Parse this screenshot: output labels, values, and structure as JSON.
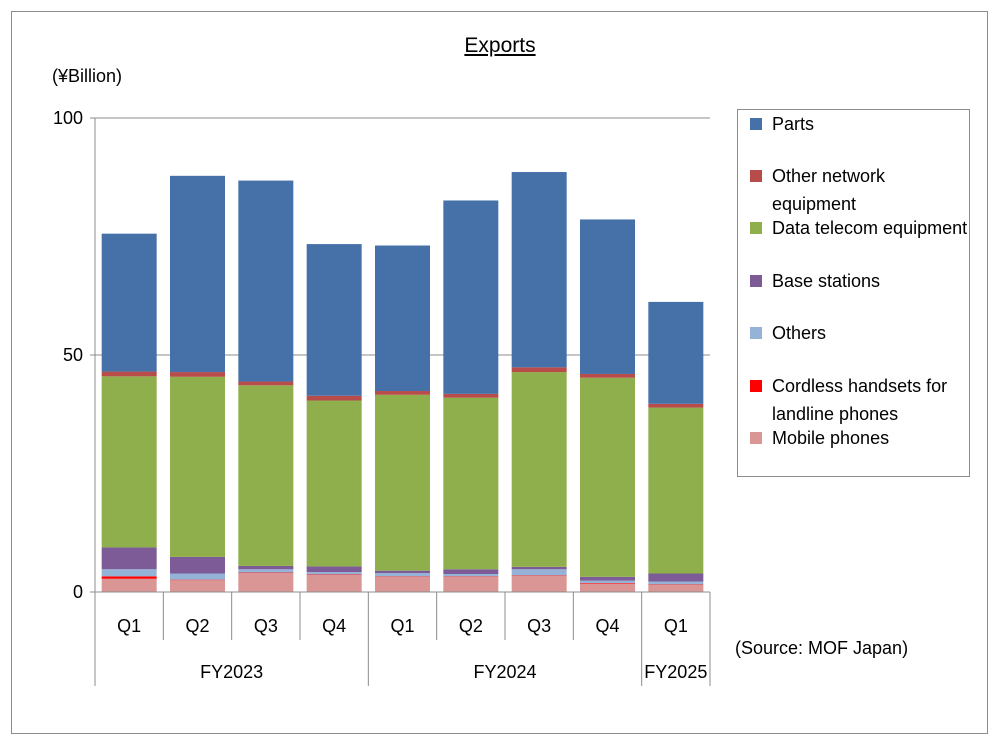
{
  "chart_data": {
    "type": "bar",
    "stacked": true,
    "title": "Exports",
    "unit_label": "(¥Billion)",
    "source": "(Source: MOF Japan)",
    "ylim": [
      0,
      100
    ],
    "y_ticks": [
      "0",
      "50",
      "100"
    ],
    "gridlines": [
      50,
      100
    ],
    "categories": [
      "Q1",
      "Q2",
      "Q3",
      "Q4",
      "Q1",
      "Q2",
      "Q3",
      "Q4",
      "Q1"
    ],
    "groups": [
      {
        "label": "FY2023",
        "span": 4
      },
      {
        "label": "FY2024",
        "span": 4
      },
      {
        "label": "FY2025",
        "span": 1
      }
    ],
    "series": [
      {
        "name": "Mobile phones",
        "color": "#d99694",
        "values": [
          2.8,
          2.5,
          4.0,
          3.6,
          3.2,
          3.2,
          3.4,
          1.8,
          1.5
        ]
      },
      {
        "name": "Cordless handsets for landline phones",
        "color": "#ff0000",
        "values": [
          0.5,
          0.1,
          0.1,
          0.1,
          0.1,
          0.1,
          0.1,
          0.1,
          0.1
        ]
      },
      {
        "name": "Others",
        "color": "#95b3d7",
        "values": [
          1.5,
          1.3,
          0.7,
          0.5,
          0.7,
          0.5,
          1.3,
          0.5,
          0.6
        ]
      },
      {
        "name": "Base stations",
        "color": "#7c5b96",
        "values": [
          4.6,
          3.5,
          0.7,
          1.2,
          0.5,
          1.0,
          0.5,
          0.8,
          1.7
        ]
      },
      {
        "name": "Data telecom equipment",
        "color": "#8faf4c",
        "values": [
          36.1,
          38.0,
          38.1,
          35.0,
          37.1,
          36.2,
          41.1,
          42.0,
          35.0
        ]
      },
      {
        "name": "Other network equipment",
        "color": "#b84c4b",
        "values": [
          1.0,
          1.0,
          0.8,
          1.0,
          0.8,
          0.8,
          1.0,
          0.8,
          0.8
        ]
      },
      {
        "name": "Parts",
        "color": "#4571a8",
        "values": [
          29.1,
          41.4,
          42.4,
          32.0,
          30.7,
          40.8,
          41.2,
          32.6,
          21.5
        ]
      }
    ]
  },
  "legend_order": [
    "Parts",
    "Other network equipment",
    "Data telecom equipment",
    "Base stations",
    "Others",
    "Cordless handsets for landline phones",
    "Mobile phones"
  ]
}
